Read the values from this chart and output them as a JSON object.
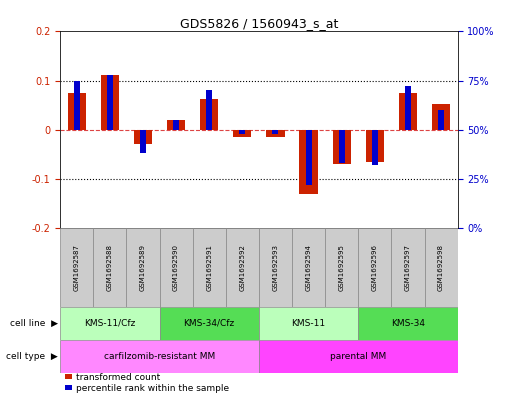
{
  "title": "GDS5826 / 1560943_s_at",
  "samples": [
    "GSM1692587",
    "GSM1692588",
    "GSM1692589",
    "GSM1692590",
    "GSM1692591",
    "GSM1692592",
    "GSM1692593",
    "GSM1692594",
    "GSM1692595",
    "GSM1692596",
    "GSM1692597",
    "GSM1692598"
  ],
  "red_values": [
    0.075,
    0.112,
    -0.03,
    0.02,
    0.063,
    -0.015,
    -0.015,
    -0.13,
    -0.07,
    -0.065,
    0.075,
    0.053
  ],
  "blue_values_pct": [
    75,
    78,
    38,
    55,
    70,
    48,
    48,
    22,
    33,
    32,
    72,
    60
  ],
  "ylim": [
    -0.2,
    0.2
  ],
  "y2lim": [
    0,
    100
  ],
  "y_ticks": [
    -0.2,
    -0.1,
    0.0,
    0.1,
    0.2
  ],
  "y2_ticks": [
    0,
    25,
    50,
    75,
    100
  ],
  "y_tick_labels": [
    "-0.2",
    "-0.1",
    "0",
    "0.1",
    "0.2"
  ],
  "y2_tick_labels": [
    "0%",
    "25%",
    "50%",
    "75%",
    "100%"
  ],
  "dotted_lines": [
    -0.1,
    0.0,
    0.1
  ],
  "cell_line_groups": [
    {
      "label": "KMS-11/Cfz",
      "start": 0,
      "end": 3,
      "color": "#bbffbb"
    },
    {
      "label": "KMS-34/Cfz",
      "start": 3,
      "end": 6,
      "color": "#55dd55"
    },
    {
      "label": "KMS-11",
      "start": 6,
      "end": 9,
      "color": "#bbffbb"
    },
    {
      "label": "KMS-34",
      "start": 9,
      "end": 12,
      "color": "#55dd55"
    }
  ],
  "cell_type_groups": [
    {
      "label": "carfilzomib-resistant MM",
      "start": 0,
      "end": 6,
      "color": "#ff88ff"
    },
    {
      "label": "parental MM",
      "start": 6,
      "end": 12,
      "color": "#ff44ff"
    }
  ],
  "red_color": "#cc2200",
  "blue_color": "#0000cc",
  "red_bar_width": 0.55,
  "blue_bar_width": 0.18,
  "legend_red": "transformed count",
  "legend_blue": "percentile rank within the sample",
  "plot_bg": "#ffffff",
  "dotted_color": "#000000",
  "zero_line_color": "#dd4444",
  "sample_box_color": "#cccccc",
  "sample_box_edge": "#888888",
  "label_arrow": "▶"
}
